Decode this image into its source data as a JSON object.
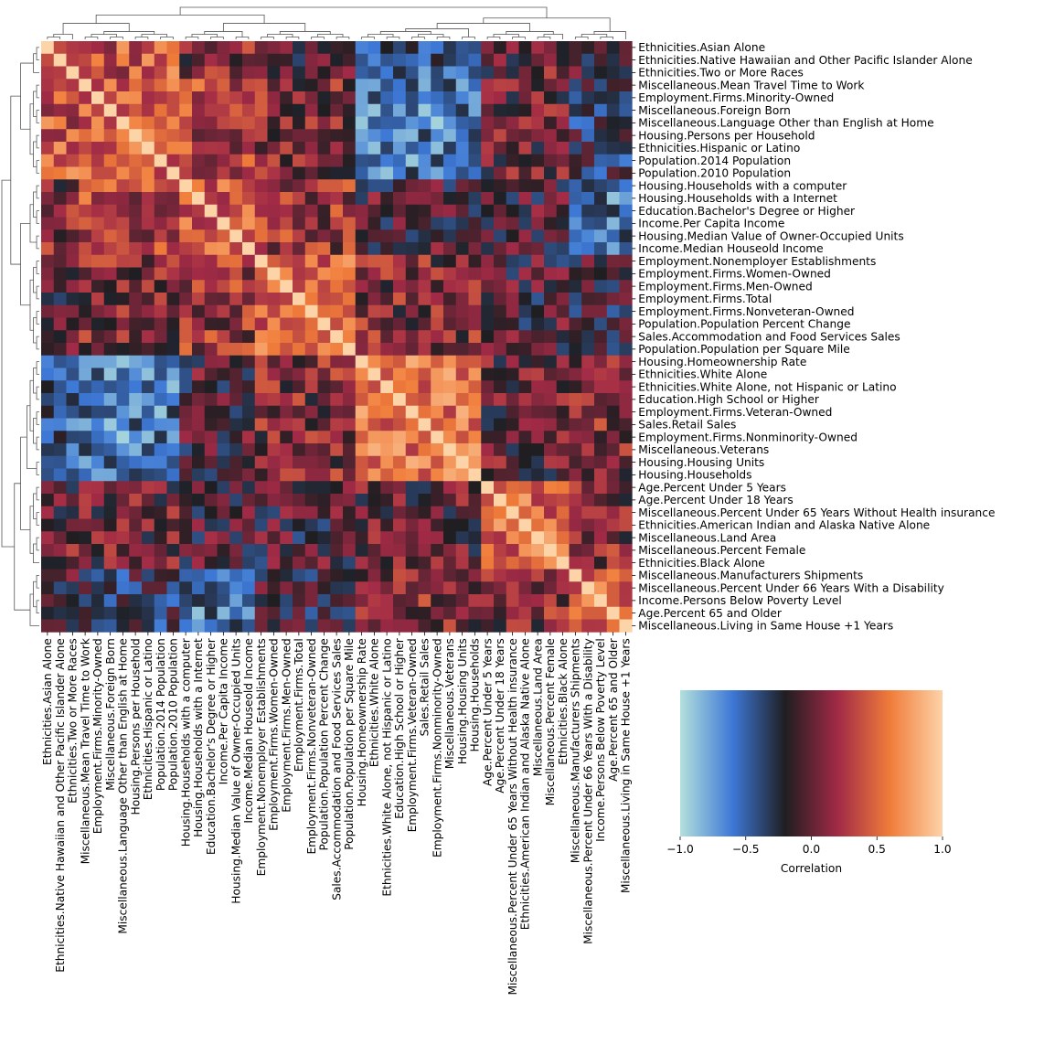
{
  "chart_data": {
    "type": "heatmap",
    "subtype": "clustered correlation heatmap (clustermap) with row and column dendrograms",
    "title": "",
    "labels": [
      "Ethnicities.Asian Alone",
      "Ethnicities.Native Hawaiian and Other Pacific Islander Alone",
      "Ethnicities.Two or More Races",
      "Miscellaneous.Mean Travel Time to Work",
      "Employment.Firms.Minority-Owned",
      "Miscellaneous.Foreign Born",
      "Miscellaneous.Language Other than English at Home",
      "Housing.Persons per Household",
      "Ethnicities.Hispanic or Latino",
      "Population.2014 Population",
      "Population.2010 Population",
      "Housing.Households with a computer",
      "Housing.Households with a Internet",
      "Education.Bachelor's Degree or Higher",
      "Income.Per Capita Income",
      "Housing.Median Value of Owner-Occupied Units",
      "Income.Median Houseold Income",
      "Employment.Nonemployer Establishments",
      "Employment.Firms.Women-Owned",
      "Employment.Firms.Men-Owned",
      "Employment.Firms.Total",
      "Employment.Firms.Nonveteran-Owned",
      "Population.Population Percent Change",
      "Sales.Accommodation and Food Services Sales",
      "Population.Population per Square Mile",
      "Housing.Homeownership Rate",
      "Ethnicities.White Alone",
      "Ethnicities.White Alone, not Hispanic or Latino",
      "Education.High School or Higher",
      "Employment.Firms.Veteran-Owned",
      "Sales.Retail Sales",
      "Employment.Firms.Nonminority-Owned",
      "Miscellaneous.Veterans",
      "Housing.Housing Units",
      "Housing.Households",
      "Age.Percent Under 5 Years",
      "Age.Percent Under 18 Years",
      "Miscellaneous.Percent Under 65 Years Without Health insurance",
      "Ethnicities.American Indian and Alaska Native Alone",
      "Miscellaneous.Land Area",
      "Miscellaneous.Percent Female",
      "Ethnicities.Black Alone",
      "Miscellaneous.Manufacturers Shipments",
      "Miscellaneous.Percent Under 66 Years With a Disability",
      "Income.Persons Below Poverty Level",
      "Age.Percent 65 and Older",
      "Miscellaneous.Living in Same House +1 Years"
    ],
    "clusters": [
      {
        "start": 0,
        "end": 2,
        "level": 0.55
      },
      {
        "start": 3,
        "end": 10,
        "level": 0.5
      },
      {
        "start": 11,
        "end": 16,
        "level": 0.45
      },
      {
        "start": 17,
        "end": 24,
        "level": 0.5
      },
      {
        "start": 25,
        "end": 34,
        "level": 0.55
      },
      {
        "start": 35,
        "end": 41,
        "level": 0.5
      },
      {
        "start": 42,
        "end": 46,
        "level": 0.45
      }
    ],
    "colorbar": {
      "label": "Correlation",
      "vmin": -1.0,
      "vmax": 1.0,
      "ticks": [
        -1.0,
        -0.5,
        0.0,
        0.5,
        1.0
      ],
      "tick_labels": [
        "−1.0",
        "−0.5",
        "0.0",
        "0.5",
        "1.0"
      ],
      "colormap": "icefire"
    },
    "colors": {
      "stops": [
        "#b3e0dc",
        "#3d78d6",
        "#1f1e21",
        "#a12a46",
        "#f07c3a",
        "#fdd3a8"
      ],
      "dendrogram_line": "#555555",
      "text": "#000000"
    },
    "values_note": ""
  }
}
